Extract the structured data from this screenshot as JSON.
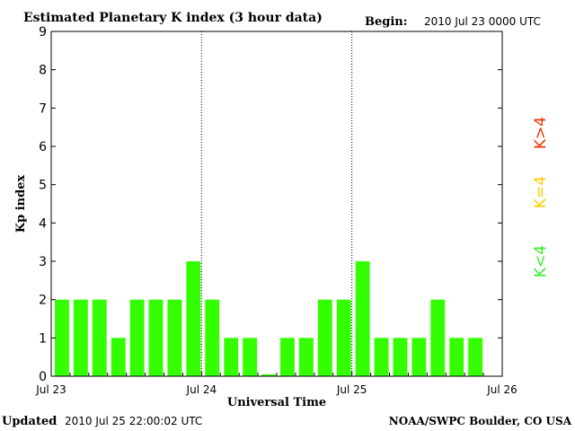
{
  "header": {
    "title": "Estimated Planetary K index (3 hour data)",
    "begin_label": "Begin:",
    "begin_value": "2010 Jul 23 0000 UTC"
  },
  "footer": {
    "updated_label": "Updated",
    "updated_value": "2010 Jul 25 22:00:02 UTC",
    "credit": "NOAA/SWPC Boulder, CO USA"
  },
  "legend": {
    "low": {
      "text": "K<4",
      "color": "#33ee22"
    },
    "mid": {
      "text": "K=4",
      "color": "#ffcc00"
    },
    "high": {
      "text": "K>4",
      "color": "#ee3300"
    }
  },
  "chart_data": {
    "type": "bar",
    "title": "Estimated Planetary K index (3 hour data)",
    "xlabel": "Universal Time",
    "ylabel": "Kp index",
    "ylim": [
      0,
      9
    ],
    "yticks": [
      "0",
      "1",
      "2",
      "3",
      "4",
      "5",
      "6",
      "7",
      "8",
      "9"
    ],
    "xticks": [
      "Jul 23",
      "Jul 24",
      "Jul 25",
      "Jul 26"
    ],
    "day_dividers_at_ticks": [
      1,
      2
    ],
    "bar_color": "#33ff00",
    "bars_per_day": 8,
    "values": [
      2,
      2,
      2,
      1,
      2,
      2,
      2,
      3,
      2,
      1,
      1,
      0.05,
      1,
      1,
      2,
      2,
      3,
      1,
      1,
      1,
      2,
      1,
      1
    ]
  }
}
